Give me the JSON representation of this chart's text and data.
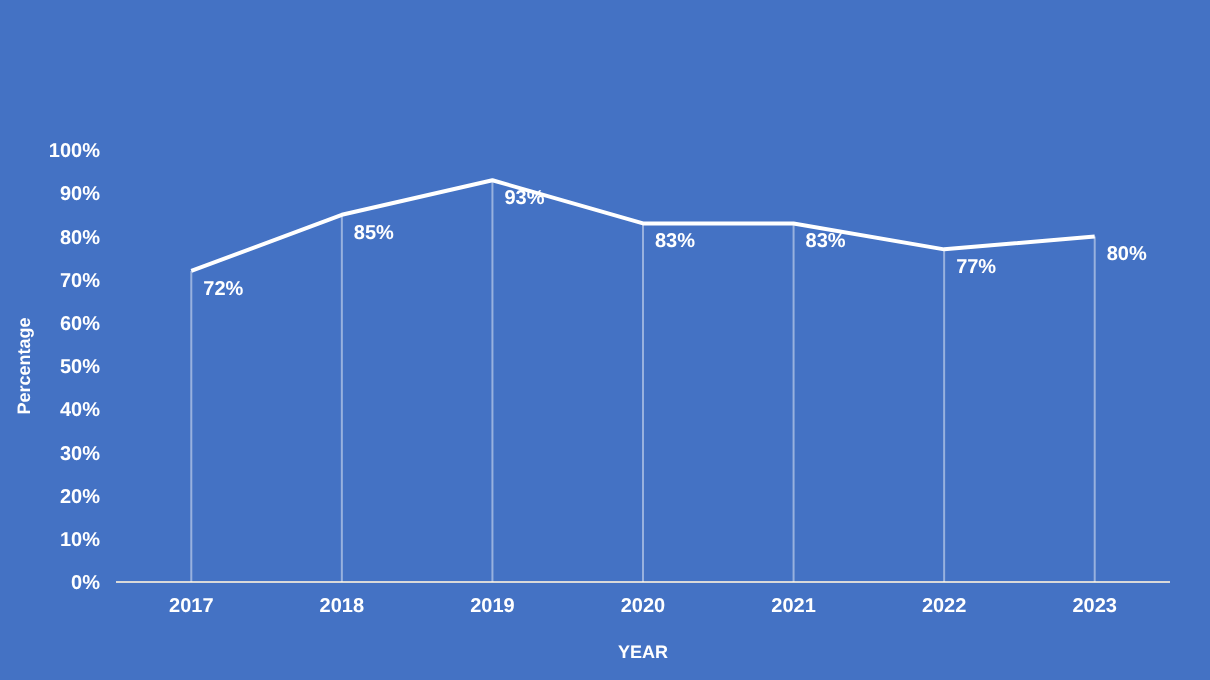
{
  "chart_data": {
    "type": "line",
    "xlabel": "YEAR",
    "ylabel": "Percentage",
    "categories": [
      "2017",
      "2018",
      "2019",
      "2020",
      "2021",
      "2022",
      "2023"
    ],
    "series": [
      {
        "color": "#ffffff",
        "values": [
          72,
          85,
          93,
          83,
          83,
          77,
          80
        ],
        "value_labels": [
          "72%",
          "85%",
          "93%",
          "83%",
          "83%",
          "77%",
          "80%"
        ]
      }
    ],
    "ylim": [
      0,
      100
    ],
    "yticks": [
      {
        "value": 0,
        "label": "0%"
      },
      {
        "value": 10,
        "label": "10%"
      },
      {
        "value": 20,
        "label": "20%"
      },
      {
        "value": 30,
        "label": "30%"
      },
      {
        "value": 40,
        "label": "40%"
      },
      {
        "value": 50,
        "label": "50%"
      },
      {
        "value": 60,
        "label": "60%"
      },
      {
        "value": 70,
        "label": "70%"
      },
      {
        "value": 80,
        "label": "80%"
      },
      {
        "value": 90,
        "label": "90%"
      },
      {
        "value": 100,
        "label": "100%"
      }
    ],
    "grid": "x",
    "legend": false,
    "marker": "none",
    "line_style": "solid"
  }
}
